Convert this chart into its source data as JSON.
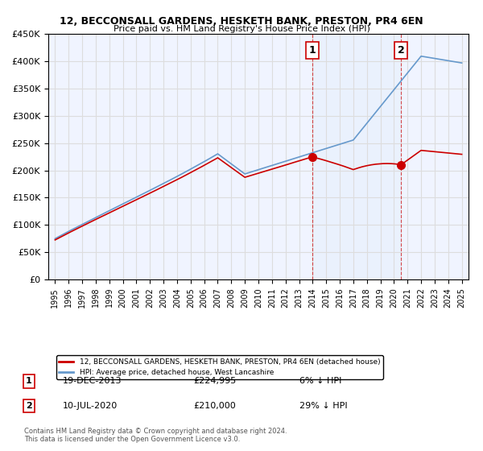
{
  "title": "12, BECCONSALL GARDENS, HESKETH BANK, PRESTON, PR4 6EN",
  "subtitle": "Price paid vs. HM Land Registry's House Price Index (HPI)",
  "legend_line1": "12, BECCONSALL GARDENS, HESKETH BANK, PRESTON, PR4 6EN (detached house)",
  "legend_line2": "HPI: Average price, detached house, West Lancashire",
  "sale1_label": "1",
  "sale1_date": "19-DEC-2013",
  "sale1_price": "£224,995",
  "sale1_pct": "6% ↓ HPI",
  "sale2_label": "2",
  "sale2_date": "10-JUL-2020",
  "sale2_price": "£210,000",
  "sale2_pct": "29% ↓ HPI",
  "footnote": "Contains HM Land Registry data © Crown copyright and database right 2024.\nThis data is licensed under the Open Government Licence v3.0.",
  "red_color": "#cc0000",
  "blue_color": "#6699cc",
  "background_color": "#ffffff",
  "plot_bg_color": "#f0f4ff",
  "grid_color": "#dddddd",
  "sale1_x": 2013.97,
  "sale1_y": 224995,
  "sale2_x": 2020.53,
  "sale2_y": 210000,
  "ylim": [
    0,
    450000
  ],
  "xlim": [
    1994.5,
    2025.5
  ]
}
